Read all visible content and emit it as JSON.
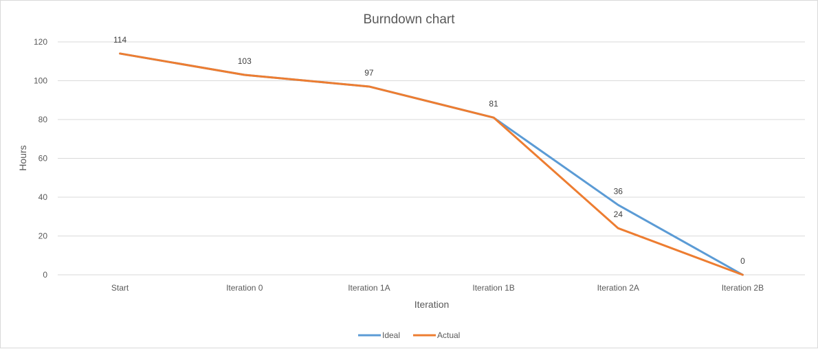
{
  "chart_data": {
    "type": "line",
    "title": "Burndown chart",
    "xlabel": "Iteration",
    "ylabel": "Hours",
    "categories": [
      "Start",
      "Iteration 0",
      "Iteration 1A",
      "Iteration 1B",
      "Iteration 2A",
      "Iteration 2B"
    ],
    "ylim": [
      0,
      120
    ],
    "yticks": [
      "0",
      "20",
      "40",
      "60",
      "80",
      "100",
      "120"
    ],
    "grid": true,
    "legend_position": "bottom",
    "series": [
      {
        "name": "Ideal",
        "color": "#5b9bd5",
        "values": [
          114,
          103,
          97,
          81,
          36,
          0
        ],
        "labels": [
          "114",
          "103",
          "97",
          "81",
          "36",
          "0"
        ]
      },
      {
        "name": "Actual",
        "color": "#ed7d31",
        "values": [
          114,
          103,
          97,
          81,
          24,
          0
        ],
        "labels": [
          "",
          "",
          "",
          "",
          "24",
          ""
        ]
      }
    ]
  }
}
